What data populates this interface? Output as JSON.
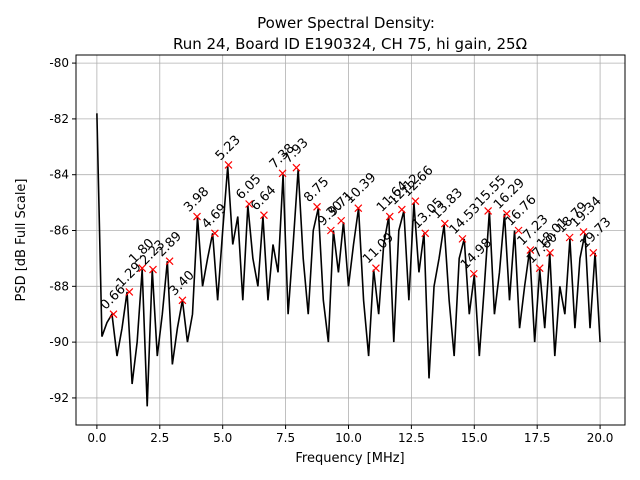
{
  "chart_data": {
    "type": "line",
    "title": "Power Spectral Density:",
    "subtitle": "Run 24, Board ID E190324, CH 75, hi gain, 25Ω",
    "xlabel": "Frequency [MHz]",
    "ylabel": "PSD [dB Full Scale]",
    "xlim": [
      -0.83,
      20.99
    ],
    "ylim": [
      -92.97,
      -79.71
    ],
    "xticks": [
      {
        "value": 0,
        "label": "0.0"
      },
      2.5,
      {
        "value": 5,
        "label": "5.0"
      },
      7.5,
      {
        "value": 10,
        "label": "10.0"
      },
      12.5,
      {
        "value": 15,
        "label": "15.0"
      },
      17.5,
      {
        "value": 20,
        "label": "20.0"
      }
    ],
    "yticks": [
      -92,
      -90,
      -88,
      -86,
      -84,
      -82,
      -80
    ],
    "grid": true,
    "series": [
      {
        "color": "#000000",
        "x": [
          0.0,
          0.2,
          0.4,
          0.6,
          0.8,
          1.0,
          1.2,
          1.4,
          1.6,
          1.8,
          2.0,
          2.2,
          2.4,
          2.6,
          2.8,
          3.0,
          3.2,
          3.4,
          3.6,
          3.8,
          4.0,
          4.2,
          4.4,
          4.6,
          4.8,
          5.0,
          5.2,
          5.4,
          5.6,
          5.8,
          6.0,
          6.2,
          6.4,
          6.6,
          6.8,
          7.0,
          7.2,
          7.4,
          7.6,
          7.8,
          8.0,
          8.2,
          8.4,
          8.6,
          8.8,
          9.0,
          9.2,
          9.4,
          9.6,
          9.8,
          10.0,
          10.2,
          10.4,
          10.6,
          10.8,
          11.0,
          11.2,
          11.4,
          11.6,
          11.8,
          12.0,
          12.2,
          12.4,
          12.6,
          12.8,
          13.0,
          13.2,
          13.4,
          13.6,
          13.8,
          14.0,
          14.2,
          14.4,
          14.6,
          14.8,
          15.0,
          15.2,
          15.4,
          15.6,
          15.8,
          16.0,
          16.2,
          16.4,
          16.6,
          16.8,
          17.0,
          17.2,
          17.4,
          17.6,
          17.8,
          18.0,
          18.2,
          18.4,
          18.6,
          18.8,
          19.0,
          19.2,
          19.4,
          19.6,
          19.8,
          20.0
        ],
        "values": [
          -81.8,
          -89.8,
          -89.3,
          -89.0,
          -90.5,
          -89.5,
          -88.2,
          -91.5,
          -90.0,
          -87.4,
          -92.3,
          -87.4,
          -90.5,
          -89.0,
          -87.1,
          -90.8,
          -89.5,
          -88.5,
          -90.0,
          -89.0,
          -85.5,
          -88.0,
          -87.0,
          -86.1,
          -88.5,
          -86.0,
          -83.7,
          -86.5,
          -85.5,
          -88.5,
          -85.1,
          -87.0,
          -88.0,
          -85.5,
          -88.5,
          -86.5,
          -87.5,
          -84.0,
          -89.0,
          -86.5,
          -83.8,
          -87.0,
          -89.0,
          -86.0,
          -85.2,
          -88.5,
          -90.0,
          -86.0,
          -87.5,
          -85.7,
          -88.0,
          -86.5,
          -85.2,
          -88.5,
          -90.5,
          -87.4,
          -89.0,
          -86.5,
          -85.5,
          -90.0,
          -86.0,
          -85.3,
          -88.5,
          -85.0,
          -87.5,
          -86.1,
          -91.3,
          -88.0,
          -87.0,
          -85.8,
          -88.5,
          -90.5,
          -87.0,
          -86.3,
          -89.0,
          -87.6,
          -90.5,
          -88.0,
          -85.3,
          -89.0,
          -87.5,
          -85.4,
          -88.5,
          -86.0,
          -89.5,
          -88.0,
          -86.7,
          -90.0,
          -87.4,
          -89.5,
          -86.8,
          -90.5,
          -88.0,
          -89.0,
          -86.3,
          -89.5,
          -87.0,
          -86.1,
          -89.5,
          -86.8,
          -90.0
        ]
      }
    ],
    "peaks": {
      "color": "#ff0000",
      "x": [
        0.66,
        1.29,
        1.8,
        2.23,
        2.89,
        3.4,
        3.98,
        4.69,
        5.23,
        6.05,
        6.64,
        7.38,
        7.93,
        8.75,
        9.3,
        9.71,
        10.39,
        11.09,
        11.64,
        12.12,
        12.66,
        13.05,
        13.83,
        14.53,
        14.98,
        15.55,
        16.29,
        16.76,
        17.23,
        17.6,
        18.01,
        18.79,
        19.34,
        19.73
      ],
      "values": [
        -89.0,
        -88.2,
        -87.35,
        -87.4,
        -87.1,
        -88.5,
        -85.5,
        -86.1,
        -83.65,
        -85.05,
        -85.45,
        -83.95,
        -83.75,
        -85.15,
        -86.0,
        -85.65,
        -85.2,
        -87.35,
        -85.5,
        -85.25,
        -84.95,
        -86.1,
        -85.75,
        -86.3,
        -87.55,
        -85.3,
        -85.4,
        -86.0,
        -86.7,
        -87.35,
        -86.8,
        -86.25,
        -86.05,
        -86.8
      ],
      "labels": [
        "0.66",
        "1.29",
        "1.80",
        "2.23",
        "2.89",
        "3.40",
        "3.98",
        "4.69",
        "5.23",
        "6.05",
        "6.64",
        "7.38",
        "7.93",
        "8.75",
        "9.30",
        "9.71",
        "10.39",
        "11.09",
        "11.64",
        "12.12",
        "12.66",
        "13.05",
        "13.83",
        "14.53",
        "14.98",
        "15.55",
        "16.29",
        "16.76",
        "17.23",
        "17.60",
        "18.01",
        "18.79",
        "19.34",
        "19.73"
      ]
    }
  }
}
